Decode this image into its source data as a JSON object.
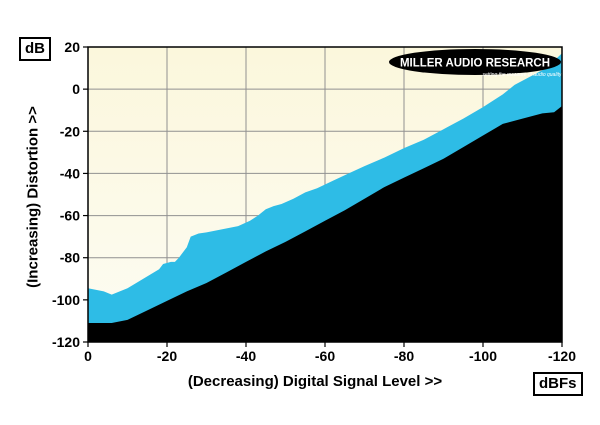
{
  "chart_data": {
    "type": "area",
    "xlabel": "(Decreasing) Digital Signal Level >>",
    "ylabel": "(Increasing) Distortion >>",
    "x_unit": "dBFs",
    "y_unit": "dB",
    "xlim": [
      0,
      -120
    ],
    "ylim": [
      -120,
      20
    ],
    "x_ticks": [
      0,
      -20,
      -40,
      -60,
      -80,
      -100,
      -120
    ],
    "y_ticks": [
      20,
      0,
      -20,
      -40,
      -60,
      -80,
      -100,
      -120
    ],
    "x_tick_labels": [
      "0",
      "-20",
      "-40",
      "-60",
      "-80",
      "-100",
      "-120"
    ],
    "y_tick_labels": [
      "20",
      "0",
      "-20",
      "-40",
      "-60",
      "-80",
      "-100",
      "-120"
    ],
    "grid": true,
    "series": [
      {
        "x": [
          0,
          -4,
          -6,
          -10,
          -14,
          -18,
          -19,
          -21,
          -22,
          -23,
          -25,
          -26,
          -28,
          -30,
          -34,
          -38,
          -41,
          -43,
          -45,
          -47,
          -49,
          -52,
          -55,
          -58,
          -62,
          -66,
          -70,
          -75,
          -80,
          -85,
          -90,
          -95,
          -100,
          -105,
          -108,
          -112,
          -116,
          -118,
          -120
        ],
        "values": [
          -94.5,
          -96,
          -97.5,
          -94.5,
          -90,
          -85.5,
          -83,
          -82,
          -82,
          -80,
          -75,
          -70,
          -68.5,
          -68,
          -66.5,
          -65,
          -62.5,
          -60,
          -57,
          -55.5,
          -54.5,
          -52,
          -49,
          -47,
          -43.5,
          -40,
          -36.5,
          -32.5,
          -28,
          -24,
          -19,
          -14,
          -8.5,
          -2.5,
          2,
          6,
          10,
          13.5,
          17
        ]
      },
      {
        "x": [
          0,
          -3,
          -6,
          -10,
          -15,
          -20,
          -25,
          -30,
          -35,
          -40,
          -45,
          -50,
          -55,
          -60,
          -65,
          -70,
          -75,
          -80,
          -85,
          -90,
          -95,
          -100,
          -105,
          -110,
          -115,
          -118,
          -120
        ],
        "values": [
          -111,
          -111,
          -111,
          -109.5,
          -105,
          -100.5,
          -96,
          -92,
          -87,
          -82,
          -77,
          -72.5,
          -67.5,
          -62.5,
          -57.5,
          -52,
          -46.5,
          -42,
          -37.5,
          -33,
          -27.5,
          -22,
          -16.5,
          -14,
          -11.5,
          -11,
          -8
        ]
      }
    ],
    "colors": {
      "plot_background": "#fcf9e2",
      "band": "#2ebce6",
      "floor": "#000000",
      "grid": "#909090"
    },
    "logo": {
      "name": "MILLER AUDIO RESEARCH",
      "tagline": "setting the measure of audio quality"
    }
  }
}
